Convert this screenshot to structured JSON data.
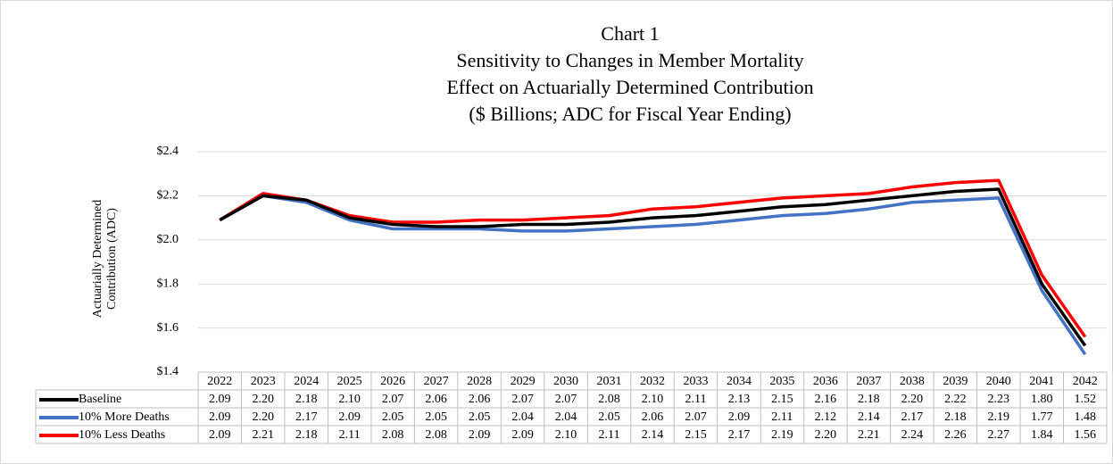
{
  "chart_data": {
    "type": "line",
    "title": [
      "Chart 1",
      "Sensitivity to Changes in Member Mortality",
      "Effect on Actuarially Determined Contribution",
      "($ Billions; ADC for Fiscal Year Ending)"
    ],
    "y_label": "Actuarially Determined Contribution (ADC)",
    "categories": [
      "2022",
      "2023",
      "2024",
      "2025",
      "2026",
      "2027",
      "2028",
      "2029",
      "2030",
      "2031",
      "2032",
      "2033",
      "2034",
      "2035",
      "2036",
      "2037",
      "2038",
      "2039",
      "2040",
      "2041",
      "2042"
    ],
    "ylim": [
      1.4,
      2.4
    ],
    "yticks": [
      {
        "value": 1.4,
        "label": "$1.4"
      },
      {
        "value": 1.6,
        "label": "$1.6"
      },
      {
        "value": 1.8,
        "label": "$1.8"
      },
      {
        "value": 2.0,
        "label": "$2.0"
      },
      {
        "value": 2.2,
        "label": "$2.2"
      },
      {
        "value": 2.4,
        "label": "$2.4"
      }
    ],
    "grid": true,
    "series": [
      {
        "name": "Baseline",
        "color": "#000000",
        "values": [
          2.09,
          2.2,
          2.18,
          2.1,
          2.07,
          2.06,
          2.06,
          2.07,
          2.07,
          2.08,
          2.1,
          2.11,
          2.13,
          2.15,
          2.16,
          2.18,
          2.2,
          2.22,
          2.23,
          1.8,
          1.52
        ],
        "value_labels": [
          "2.09",
          "2.20",
          "2.18",
          "2.10",
          "2.07",
          "2.06",
          "2.06",
          "2.07",
          "2.07",
          "2.08",
          "2.10",
          "2.11",
          "2.13",
          "2.15",
          "2.16",
          "2.18",
          "2.20",
          "2.22",
          "2.23",
          "1.80",
          "1.52"
        ]
      },
      {
        "name": "10% More Deaths",
        "color": "#4472c4",
        "values": [
          2.09,
          2.2,
          2.17,
          2.09,
          2.05,
          2.05,
          2.05,
          2.04,
          2.04,
          2.05,
          2.06,
          2.07,
          2.09,
          2.11,
          2.12,
          2.14,
          2.17,
          2.18,
          2.19,
          1.77,
          1.48
        ],
        "value_labels": [
          "2.09",
          "2.20",
          "2.17",
          "2.09",
          "2.05",
          "2.05",
          "2.05",
          "2.04",
          "2.04",
          "2.05",
          "2.06",
          "2.07",
          "2.09",
          "2.11",
          "2.12",
          "2.14",
          "2.17",
          "2.18",
          "2.19",
          "1.77",
          "1.48"
        ]
      },
      {
        "name": "10% Less Deaths",
        "color": "#ff0000",
        "values": [
          2.09,
          2.21,
          2.18,
          2.11,
          2.08,
          2.08,
          2.09,
          2.09,
          2.1,
          2.11,
          2.14,
          2.15,
          2.17,
          2.19,
          2.2,
          2.21,
          2.24,
          2.26,
          2.27,
          1.84,
          1.56
        ],
        "value_labels": [
          "2.09",
          "2.21",
          "2.18",
          "2.11",
          "2.08",
          "2.08",
          "2.09",
          "2.09",
          "2.10",
          "2.11",
          "2.14",
          "2.15",
          "2.17",
          "2.19",
          "2.20",
          "2.21",
          "2.24",
          "2.26",
          "2.27",
          "1.84",
          "1.56"
        ]
      }
    ]
  }
}
